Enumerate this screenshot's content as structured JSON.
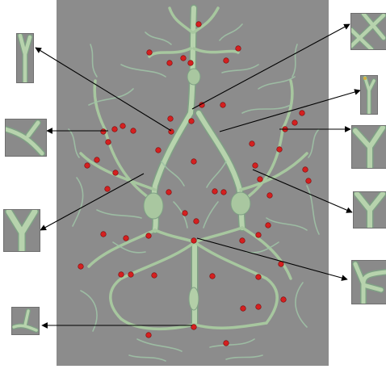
{
  "figure": {
    "background_color": "#ffffff",
    "panel_color": "#8c8c8c",
    "vessel_color": "#b7d3ad",
    "vessel_edge_color": "#7fa085",
    "marker_color": "#d42020",
    "arrow_color": "#000000",
    "main_panel_icon": "cerebral-vasculature-render",
    "thumbnail_icon": "vessel-branch-closeup",
    "callout_count": 10
  }
}
